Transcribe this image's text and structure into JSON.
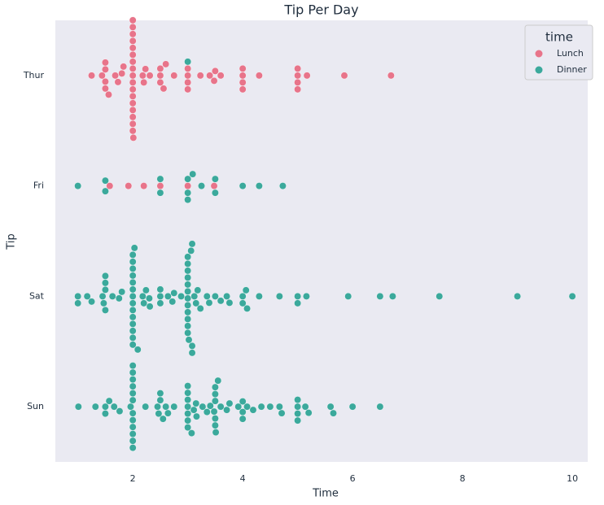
{
  "chart_data": {
    "type": "swarm",
    "title": "Tip Per Day",
    "xlabel": "Time",
    "ylabel": "Tip",
    "categories": [
      "Thur",
      "Fri",
      "Sat",
      "Sun"
    ],
    "xlim": [
      0.59,
      10.28
    ],
    "xticks": [
      2,
      4,
      6,
      8,
      10
    ],
    "grid": false,
    "legend_title": "time",
    "legend": "upper right",
    "series": [
      {
        "name": "Lunch",
        "color": "#e8748a",
        "values": [
          [
            1.25,
            1.44,
            1.5,
            1.5,
            1.5,
            1.5,
            1.56,
            1.68,
            1.73,
            1.8,
            1.83,
            2,
            2,
            2,
            2,
            2,
            2,
            2,
            2,
            2,
            2,
            2,
            2,
            2,
            2,
            2,
            2,
            2,
            2.01,
            2.18,
            2.2,
            2.23,
            2.31,
            2.5,
            2.5,
            2.5,
            2.56,
            2.6,
            2.75,
            3,
            3,
            3,
            3,
            3.23,
            3.4,
            3.48,
            3.5,
            3.6,
            4,
            4,
            4,
            4,
            4.3,
            5,
            5,
            5,
            5,
            5.17,
            5.85,
            6.7
          ],
          [
            1.58,
            1.92,
            2.2,
            2.5,
            3,
            3.48
          ],
          [],
          []
        ]
      },
      {
        "name": "Dinner",
        "color": "#3ba99c",
        "values": [
          [
            3
          ],
          [
            1,
            1.5,
            1.5,
            2.5,
            2.5,
            3,
            3,
            3,
            3.09,
            3.25,
            3.5,
            3.5,
            4,
            4.3,
            4.73
          ],
          [
            1,
            1,
            1.17,
            1.25,
            1.45,
            1.47,
            1.5,
            1.5,
            1.5,
            1.5,
            1.63,
            1.75,
            1.8,
            2,
            2,
            2,
            2,
            2,
            2,
            2,
            2,
            2,
            2,
            2,
            2,
            2,
            2,
            2.03,
            2.09,
            2.18,
            2.2,
            2.24,
            2.3,
            2.31,
            2.5,
            2.5,
            2.5,
            2.64,
            2.72,
            2.75,
            2.88,
            3,
            3,
            3,
            3,
            3,
            3,
            3,
            3,
            3,
            3,
            3,
            3,
            3.02,
            3.06,
            3.08,
            3.08,
            3.08,
            3.12,
            3.15,
            3.18,
            3.23,
            3.35,
            3.39,
            3.5,
            3.6,
            3.71,
            3.76,
            4,
            4,
            4.06,
            4.08,
            4.3,
            4.67,
            5,
            5,
            5.16,
            5.92,
            6.5,
            6.73,
            7.58,
            9,
            10
          ],
          [
            1.01,
            1.32,
            1.5,
            1.5,
            1.57,
            1.66,
            1.76,
            1.96,
            2,
            2,
            2,
            2,
            2,
            2,
            2,
            2,
            2,
            2,
            2,
            2,
            2.23,
            2.45,
            2.47,
            2.5,
            2.5,
            2.55,
            2.6,
            2.64,
            2.75,
            3,
            3,
            3,
            3,
            3,
            3,
            3,
            3.07,
            3.11,
            3.15,
            3.16,
            3.27,
            3.35,
            3.41,
            3.48,
            3.5,
            3.5,
            3.5,
            3.5,
            3.5,
            3.51,
            3.55,
            3.6,
            3.71,
            3.76,
            3.92,
            4,
            4,
            4,
            4.08,
            4.19,
            4.34,
            4.5,
            4.67,
            4.71,
            5,
            5,
            5,
            5,
            5.14,
            5.2,
            5.6,
            5.65,
            6,
            6.5
          ]
        ]
      }
    ]
  }
}
